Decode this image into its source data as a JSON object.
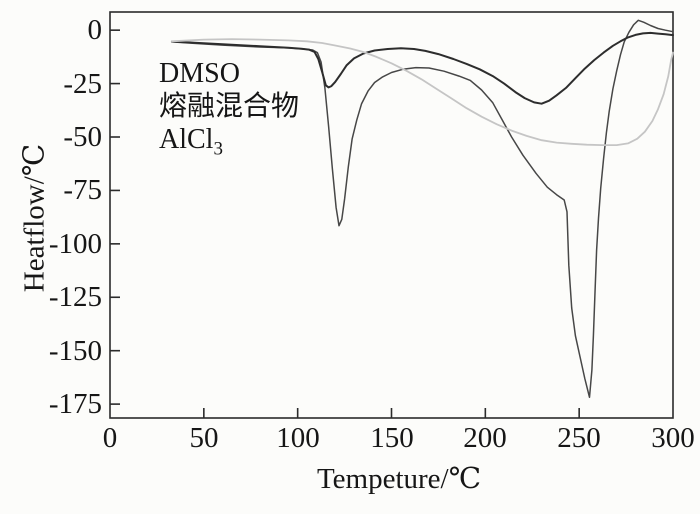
{
  "chart_data": {
    "type": "line",
    "title": "",
    "xlabel": "Tempeture/℃",
    "ylabel": "Heatflow/℃",
    "xlim": [
      0,
      300
    ],
    "ylim": [
      -181.5,
      8.5
    ],
    "xticks": [
      0,
      50,
      100,
      150,
      200,
      250,
      300
    ],
    "yticks": [
      0,
      -25,
      -50,
      -75,
      -100,
      -125,
      -150,
      -175
    ],
    "grid": false,
    "legend_position": "inside-top-left",
    "legend": [
      "DMSO",
      "熔融混合物",
      "AlCl3"
    ],
    "legend_alcl3": {
      "prefix": "AlCl",
      "subscript": "3"
    },
    "axis_color": "#2b2b2b",
    "series": [
      {
        "name": "DMSO",
        "color": "#474747",
        "stroke_width": 1.5,
        "points": [
          [
            33,
            -5.5
          ],
          [
            45,
            -6.2
          ],
          [
            60,
            -7
          ],
          [
            80,
            -7.9
          ],
          [
            95,
            -8.3
          ],
          [
            103,
            -8.8
          ],
          [
            108,
            -9.3
          ],
          [
            110.5,
            -10.5
          ],
          [
            112.5,
            -15
          ],
          [
            114.5,
            -27
          ],
          [
            116.5,
            -45
          ],
          [
            118.5,
            -65
          ],
          [
            120.5,
            -83
          ],
          [
            122,
            -91.5
          ],
          [
            123.5,
            -88.5
          ],
          [
            125,
            -79
          ],
          [
            127,
            -64
          ],
          [
            129,
            -51
          ],
          [
            131.5,
            -42
          ],
          [
            134,
            -34.5
          ],
          [
            137.5,
            -28.5
          ],
          [
            141,
            -24.5
          ],
          [
            145,
            -22
          ],
          [
            150,
            -19.8
          ],
          [
            156,
            -18.3
          ],
          [
            163,
            -17.5
          ],
          [
            170,
            -17.7
          ],
          [
            178,
            -19.2
          ],
          [
            186,
            -21.5
          ],
          [
            192,
            -23.5
          ],
          [
            198,
            -28
          ],
          [
            204,
            -34
          ],
          [
            209,
            -42
          ],
          [
            214,
            -50
          ],
          [
            220,
            -58.5
          ],
          [
            227,
            -67
          ],
          [
            233,
            -73.5
          ],
          [
            238,
            -77
          ],
          [
            242,
            -79.5
          ],
          [
            243.5,
            -85
          ],
          [
            244.5,
            -110
          ],
          [
            246,
            -130
          ],
          [
            248,
            -143
          ],
          [
            250.5,
            -153
          ],
          [
            253,
            -163
          ],
          [
            255.5,
            -171.8
          ],
          [
            256.8,
            -159
          ],
          [
            257.6,
            -143
          ],
          [
            258.4,
            -124
          ],
          [
            259.3,
            -103
          ],
          [
            260.3,
            -88
          ],
          [
            261.5,
            -74
          ],
          [
            263,
            -60
          ],
          [
            264.5,
            -48
          ],
          [
            266,
            -38
          ],
          [
            268,
            -27.5
          ],
          [
            270,
            -19
          ],
          [
            272,
            -11.5
          ],
          [
            274,
            -5.5
          ],
          [
            276.5,
            -1
          ],
          [
            279,
            2.5
          ],
          [
            281.5,
            4.6
          ],
          [
            284.5,
            3.7
          ],
          [
            288,
            2.2
          ],
          [
            292,
            0.8
          ],
          [
            296,
            0
          ],
          [
            300,
            -0.7
          ]
        ]
      },
      {
        "name": "熔融混合物",
        "color": "#2d2d2d",
        "stroke_width": 2.0,
        "points": [
          [
            33,
            -5.3
          ],
          [
            45,
            -5.9
          ],
          [
            60,
            -6.6
          ],
          [
            80,
            -7.5
          ],
          [
            95,
            -8.2
          ],
          [
            102,
            -8.7
          ],
          [
            106,
            -9.1
          ],
          [
            109,
            -10.2
          ],
          [
            111,
            -13.5
          ],
          [
            113,
            -19.5
          ],
          [
            115,
            -25.8
          ],
          [
            116.5,
            -26.8
          ],
          [
            118,
            -26.2
          ],
          [
            120,
            -24.2
          ],
          [
            123,
            -20.5
          ],
          [
            126,
            -16.5
          ],
          [
            130,
            -13.2
          ],
          [
            135,
            -10.9
          ],
          [
            141,
            -9.5
          ],
          [
            148,
            -8.8
          ],
          [
            155,
            -8.5
          ],
          [
            162,
            -8.8
          ],
          [
            168,
            -9.7
          ],
          [
            175,
            -11.2
          ],
          [
            183,
            -13.5
          ],
          [
            190,
            -15.8
          ],
          [
            197,
            -18.3
          ],
          [
            204,
            -21.5
          ],
          [
            210,
            -25
          ],
          [
            216,
            -29
          ],
          [
            221,
            -31.8
          ],
          [
            226,
            -33.8
          ],
          [
            230,
            -34.4
          ],
          [
            234,
            -33
          ],
          [
            238,
            -30.5
          ],
          [
            243,
            -27
          ],
          [
            248,
            -22.5
          ],
          [
            253,
            -18
          ],
          [
            258,
            -14
          ],
          [
            263,
            -10.5
          ],
          [
            268,
            -7.3
          ],
          [
            272,
            -5.2
          ],
          [
            276,
            -3.4
          ],
          [
            280,
            -2.2
          ],
          [
            284,
            -1.5
          ],
          [
            288,
            -1.3
          ],
          [
            292,
            -1.6
          ],
          [
            296,
            -1.9
          ],
          [
            300,
            -2.3
          ]
        ]
      },
      {
        "name": "AlCl3",
        "color": "#c5c5c5",
        "stroke_width": 1.8,
        "points": [
          [
            33,
            -5.2
          ],
          [
            50,
            -4.4
          ],
          [
            65,
            -4.2
          ],
          [
            80,
            -4.4
          ],
          [
            95,
            -4.8
          ],
          [
            105,
            -5.2
          ],
          [
            113,
            -6
          ],
          [
            120,
            -7.2
          ],
          [
            128,
            -8.6
          ],
          [
            135,
            -10.2
          ],
          [
            142,
            -12.5
          ],
          [
            150,
            -15.5
          ],
          [
            158,
            -19
          ],
          [
            166,
            -23
          ],
          [
            174,
            -27.5
          ],
          [
            182,
            -32
          ],
          [
            190,
            -36.5
          ],
          [
            198,
            -40.5
          ],
          [
            206,
            -44
          ],
          [
            214,
            -47
          ],
          [
            222,
            -49.5
          ],
          [
            230,
            -51.5
          ],
          [
            238,
            -52.6
          ],
          [
            246,
            -53.2
          ],
          [
            254,
            -53.6
          ],
          [
            262,
            -53.8
          ],
          [
            270,
            -53.8
          ],
          [
            276,
            -53
          ],
          [
            281,
            -50.8
          ],
          [
            285,
            -47.5
          ],
          [
            289,
            -42.5
          ],
          [
            292,
            -37
          ],
          [
            295,
            -30
          ],
          [
            297.5,
            -21.5
          ],
          [
            299,
            -14
          ],
          [
            300,
            -10.5
          ]
        ]
      }
    ]
  }
}
